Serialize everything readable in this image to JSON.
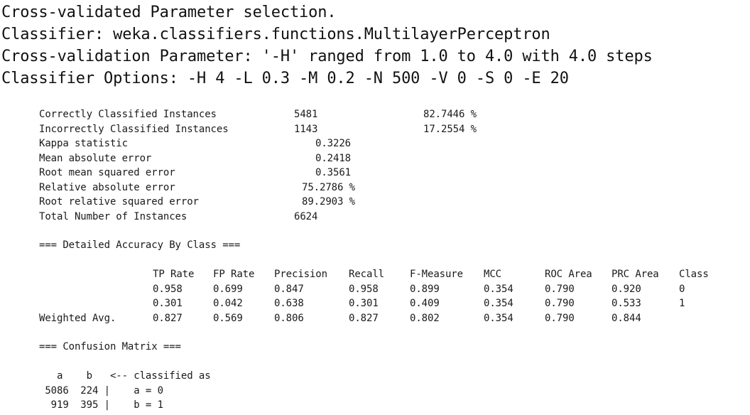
{
  "header": {
    "line1": "Cross-validated Parameter selection.",
    "line2": "Classifier: weka.classifiers.functions.MultilayerPerceptron",
    "line3": "Cross-validation Parameter: '-H' ranged from 1.0 to 4.0 with 4.0 steps",
    "line4": "Classifier Options: -H 4 -L 0.3 -M 0.2 -N 500 -V 0 -S 0 -E 20"
  },
  "summary": [
    {
      "label": "Correctly Classified Instances",
      "value": "5481",
      "pct": "82.7446 %"
    },
    {
      "label": "Incorrectly Classified Instances",
      "value": "1143",
      "pct": "17.2554 %"
    },
    {
      "label": "Kappa statistic",
      "value": "0.3226"
    },
    {
      "label": "Mean absolute error",
      "value": "0.2418"
    },
    {
      "label": "Root mean squared error",
      "value": "0.3561"
    },
    {
      "label": "Relative absolute error",
      "value": "75.2786 %"
    },
    {
      "label": "Root relative squared error",
      "value": "89.2903 %"
    },
    {
      "label": "Total Number of Instances",
      "value": "6624"
    }
  ],
  "accuracy": {
    "title": "=== Detailed Accuracy By Class ===",
    "columns": [
      "TP Rate",
      "FP Rate",
      "Precision",
      "Recall",
      "F-Measure",
      "MCC",
      "ROC Area",
      "PRC Area",
      "Class"
    ],
    "rows": [
      {
        "label": "",
        "cells": [
          "0.958",
          "0.699",
          "0.847",
          "0.958",
          "0.899",
          "0.354",
          "0.790",
          "0.920",
          "0"
        ]
      },
      {
        "label": "",
        "cells": [
          "0.301",
          "0.042",
          "0.638",
          "0.301",
          "0.409",
          "0.354",
          "0.790",
          "0.533",
          "1"
        ]
      },
      {
        "label": "Weighted Avg.",
        "cells": [
          "0.827",
          "0.569",
          "0.806",
          "0.827",
          "0.802",
          "0.354",
          "0.790",
          "0.844",
          ""
        ]
      }
    ]
  },
  "confusion": {
    "title": "=== Confusion Matrix ===",
    "header": "   a    b   <-- classified as",
    "rows": [
      " 5086  224 |    a = 0",
      "  919  395 |    b = 1"
    ]
  }
}
